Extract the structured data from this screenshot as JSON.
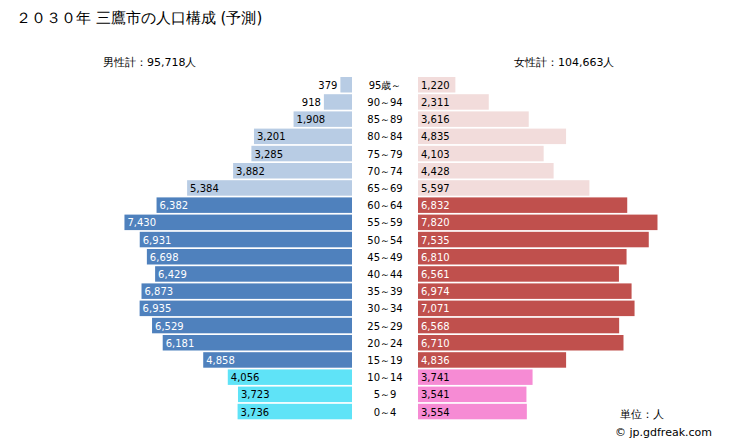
{
  "chart_data": {
    "type": "bar",
    "orientation": "horizontal",
    "title": "２０３０年 三鷹市の人口構成 (予測)",
    "annotations": [
      "男性計：95,718人",
      "女性計：104,663人",
      "単位：人",
      "© jp.gdfreak.com"
    ],
    "categories": [
      "95歳～",
      "90～94",
      "85～89",
      "80～84",
      "75～79",
      "70～74",
      "65～69",
      "60～64",
      "55～59",
      "50～54",
      "45～49",
      "40～44",
      "35～39",
      "30～34",
      "25～29",
      "20～24",
      "15～19",
      "10～14",
      "5～9",
      "0～4"
    ],
    "series": [
      {
        "values": [
          379,
          918,
          1908,
          3201,
          3285,
          3882,
          5384,
          6382,
          7430,
          6931,
          6698,
          6429,
          6873,
          6935,
          6529,
          6181,
          4858,
          4056,
          3723,
          3736
        ],
        "value_labels": [
          "379",
          "918",
          "1,908",
          "3,201",
          "3,285",
          "3,882",
          "5,384",
          "6,382",
          "7,430",
          "6,931",
          "6,698",
          "6,429",
          "6,873",
          "6,935",
          "6,529",
          "6,181",
          "4,858",
          "4,056",
          "3,723",
          "3,736"
        ],
        "colors": [
          "#b8cce4",
          "#b8cce4",
          "#b8cce4",
          "#b8cce4",
          "#b8cce4",
          "#b8cce4",
          "#b8cce4",
          "#4f81bd",
          "#4f81bd",
          "#4f81bd",
          "#4f81bd",
          "#4f81bd",
          "#4f81bd",
          "#4f81bd",
          "#4f81bd",
          "#4f81bd",
          "#4f81bd",
          "#5fe3f7",
          "#5fe3f7",
          "#5fe3f7"
        ]
      },
      {
        "values": [
          1220,
          2311,
          3616,
          4835,
          4103,
          4428,
          5597,
          6832,
          7820,
          7535,
          6810,
          6561,
          6974,
          7071,
          6568,
          6710,
          4836,
          3741,
          3541,
          3554
        ],
        "value_labels": [
          "1,220",
          "2,311",
          "3,616",
          "4,835",
          "4,103",
          "4,428",
          "5,597",
          "6,832",
          "7,820",
          "7,535",
          "6,810",
          "6,561",
          "6,974",
          "7,071",
          "6,568",
          "6,710",
          "4,836",
          "3,741",
          "3,541",
          "3,554"
        ],
        "colors": [
          "#f2dcdb",
          "#f2dcdb",
          "#f2dcdb",
          "#f2dcdb",
          "#f2dcdb",
          "#f2dcdb",
          "#f2dcdb",
          "#c0504d",
          "#c0504d",
          "#c0504d",
          "#c0504d",
          "#c0504d",
          "#c0504d",
          "#c0504d",
          "#c0504d",
          "#c0504d",
          "#c0504d",
          "#f68bd4",
          "#f68bd4",
          "#f68bd4"
        ]
      }
    ],
    "xlim": [
      0,
      8000
    ],
    "tick_labels": false,
    "data_labels": true
  }
}
